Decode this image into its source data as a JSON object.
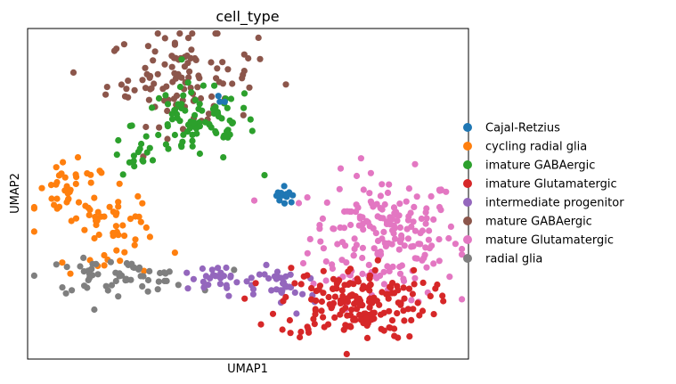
{
  "chart_data": {
    "type": "scatter",
    "title": "cell_type",
    "xlabel": "UMAP1",
    "ylabel": "UMAP2",
    "xlim": [
      0,
      100
    ],
    "ylim": [
      0,
      100
    ],
    "grid": false,
    "legend_placement": "right-outside",
    "note": "UMAP embedding without tick labels; clusters are given as approximate center, spread and point count in arbitrary embedding units",
    "series": [
      {
        "name": "Cajal-Retzius",
        "color": "#1f77b4",
        "clusters": [
          {
            "cx": 58.4,
            "cy": 49.5,
            "sx": 1.0,
            "sy": 1.6,
            "n": 14
          },
          {
            "cx": 41.5,
            "cy": 77.5,
            "sx": 2.5,
            "sy": 1.5,
            "n": 3
          }
        ]
      },
      {
        "name": "cycling radial glia",
        "color": "#ff7f0e",
        "clusters": [
          {
            "cx": 10,
            "cy": 50,
            "sx": 4.5,
            "sy": 4.5,
            "n": 40
          },
          {
            "cx": 20,
            "cy": 42.5,
            "sx": 4.5,
            "sy": 3.5,
            "n": 35
          },
          {
            "cx": 23,
            "cy": 31,
            "sx": 8,
            "sy": 2.5,
            "n": 14
          }
        ]
      },
      {
        "name": "imature GABAergic",
        "color": "#2ca02c",
        "clusters": [
          {
            "cx": 38,
            "cy": 71,
            "sx": 7,
            "sy": 6,
            "n": 90
          },
          {
            "cx": 24,
            "cy": 61,
            "sx": 2.5,
            "sy": 3.5,
            "n": 12
          }
        ]
      },
      {
        "name": "imature Glutamatergic",
        "color": "#d62728",
        "clusters": [
          {
            "cx": 74,
            "cy": 17,
            "sx": 8.5,
            "sy": 5.5,
            "n": 180
          }
        ]
      },
      {
        "name": "intermediate progenitor",
        "color": "#9467bd",
        "clusters": [
          {
            "cx": 42,
            "cy": 24,
            "sx": 6,
            "sy": 2.2,
            "n": 30
          },
          {
            "cx": 58.5,
            "cy": 21,
            "sx": 3.5,
            "sy": 4,
            "n": 30
          }
        ]
      },
      {
        "name": "mature GABAergic",
        "color": "#8c564b",
        "clusters": [
          {
            "cx": 35,
            "cy": 85,
            "sx": 8.5,
            "sy": 7,
            "n": 110
          }
        ]
      },
      {
        "name": "mature Glutamatergic",
        "color": "#e377c2",
        "clusters": [
          {
            "cx": 81,
            "cy": 37,
            "sx": 8.5,
            "sy": 9.5,
            "n": 200
          }
        ]
      },
      {
        "name": "radial glia",
        "color": "#7f7f7f",
        "clusters": [
          {
            "cx": 20,
            "cy": 25,
            "sx": 8.5,
            "sy": 2.5,
            "n": 60
          }
        ]
      }
    ],
    "draw_order": [
      "mature Glutamatergic",
      "mature GABAergic",
      "imature GABAergic",
      "cycling radial glia",
      "radial glia",
      "intermediate progenitor",
      "imature Glutamatergic",
      "Cajal-Retzius"
    ]
  }
}
